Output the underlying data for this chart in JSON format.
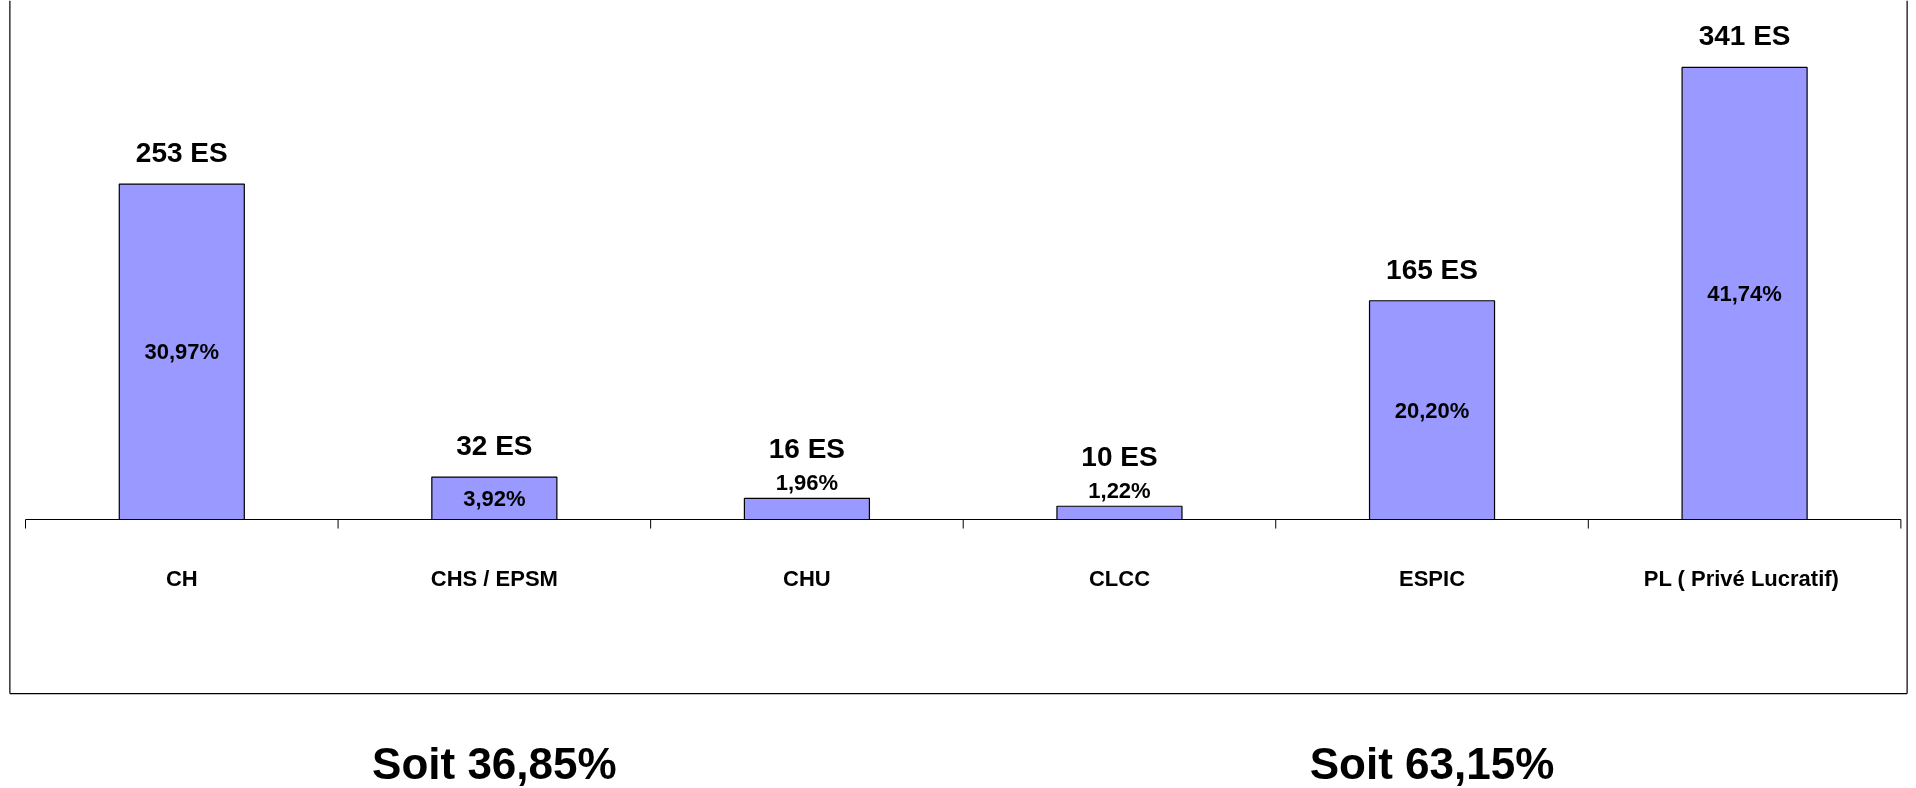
{
  "chart_data": {
    "type": "bar",
    "categories": [
      "CH",
      "CHS / EPSM",
      "CHU",
      "CLCC",
      "ESPIC",
      "PL  ( Privé Lucratif)"
    ],
    "values": [
      253,
      32,
      16,
      10,
      165,
      341
    ],
    "color": "#9999ff",
    "value_labels": [
      "253 ES",
      "32 ES",
      "16 ES",
      "10 ES",
      "165 ES",
      "341 ES"
    ],
    "annotations": [
      "30,97%",
      "3,92%",
      "1,96%",
      "1,22%",
      "20,20%",
      "41,74%",
      "Soit 36,85%",
      "Soit 63,15%"
    ],
    "grid": false
  }
}
